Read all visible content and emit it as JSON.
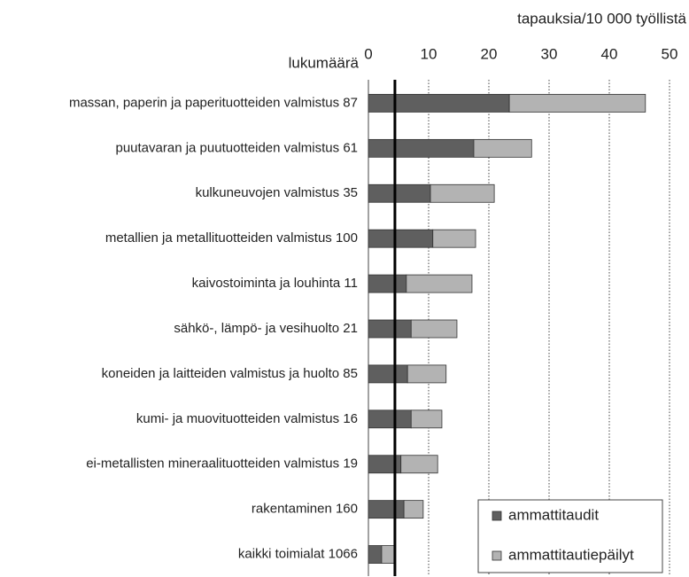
{
  "chart_data": {
    "type": "stacked-barh",
    "x_axis_label": "tapauksia/10 000 työllistä",
    "y_axis_label": "lukumäärä",
    "categories": [
      "massan, paperin ja paperituotteiden valmistus 87",
      "puutavaran ja puutuotteiden valmistus 61",
      "kulkuneuvojen valmistus 35",
      "metallien ja metallituotteiden valmistus 100",
      "kaivostoiminta ja louhinta 11",
      "sähkö-, lämpö- ja vesihuolto 21",
      "koneiden ja laitteiden valmistus ja huolto 85",
      "kumi- ja muovituotteiden valmistus 16",
      "ei-metallisten mineraalituotteiden valmistus 19",
      "rakentaminen 160",
      "kaikki toimialat 1066"
    ],
    "series": [
      {
        "name": "ammattitaudit",
        "color": "#5f5f5f",
        "values": [
          23.4,
          17.5,
          10.3,
          10.7,
          6.3,
          7.1,
          6.5,
          7.1,
          5.4,
          5.9,
          2.2
        ]
      },
      {
        "name": "ammattitautiepäilyt",
        "color": "#b3b3b3",
        "values": [
          22.6,
          9.6,
          10.6,
          7.1,
          10.9,
          7.6,
          6.4,
          5.1,
          6.1,
          3.2,
          2.2
        ]
      }
    ],
    "reference_line": 4.4,
    "xlim": [
      0,
      50
    ],
    "xticks": [
      0,
      10,
      20,
      30,
      40,
      50
    ],
    "grid": true,
    "legend_position": "lower right"
  }
}
